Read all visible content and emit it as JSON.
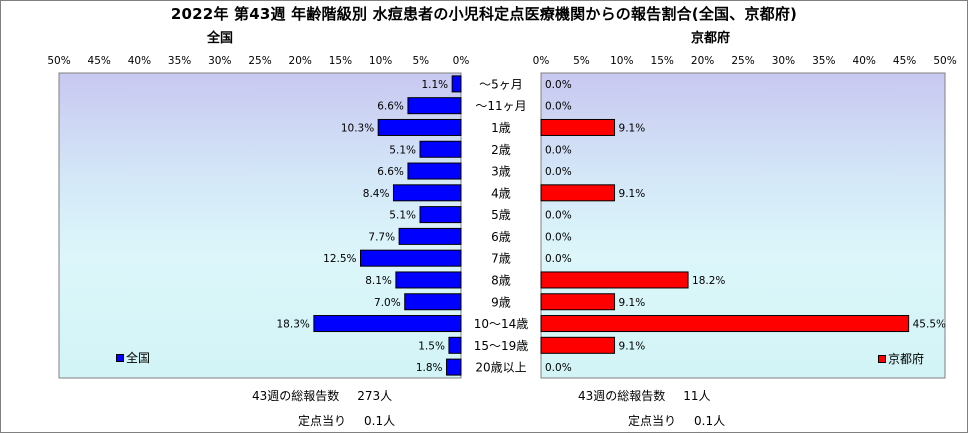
{
  "title": "2022年 第43週 年齢階級別 水痘患者の小児科定点医療機関からの報告割合(全国、京都府)",
  "chart_data": {
    "type": "bar",
    "orientation": "horizontal",
    "categories": [
      "～5ヶ月",
      "～11ヶ月",
      "1歳",
      "2歳",
      "3歳",
      "4歳",
      "5歳",
      "6歳",
      "7歳",
      "8歳",
      "9歳",
      "10～14歳",
      "15～19歳",
      "20歳以上"
    ],
    "tick_values": [
      0,
      5,
      10,
      15,
      20,
      25,
      30,
      35,
      40,
      45,
      50
    ],
    "tick_labels": [
      "0%",
      "5%",
      "10%",
      "15%",
      "20%",
      "25%",
      "30%",
      "35%",
      "40%",
      "45%",
      "50%"
    ],
    "xlim": [
      0,
      50
    ],
    "panels": [
      {
        "name": "全国",
        "title": "全国",
        "legend": "全国",
        "color": "#0000ff",
        "direction": "reversed",
        "values": [
          1.1,
          6.6,
          10.3,
          5.1,
          6.6,
          8.4,
          5.1,
          7.7,
          12.5,
          8.1,
          7.0,
          18.3,
          1.5,
          1.8
        ],
        "value_labels": [
          "1.1%",
          "6.6%",
          "10.3%",
          "5.1%",
          "6.6%",
          "8.4%",
          "5.1%",
          "7.7%",
          "12.5%",
          "8.1%",
          "7.0%",
          "18.3%",
          "1.5%",
          "1.8%"
        ],
        "legend_position": "bottom-left"
      },
      {
        "name": "京都府",
        "title": "京都府",
        "legend": "京都府",
        "color": "#ff0000",
        "direction": "normal",
        "values": [
          0.0,
          0.0,
          9.1,
          0.0,
          0.0,
          9.1,
          0.0,
          0.0,
          0.0,
          18.2,
          9.1,
          45.5,
          9.1,
          0.0
        ],
        "value_labels": [
          "0.0%",
          "0.0%",
          "9.1%",
          "0.0%",
          "0.0%",
          "9.1%",
          "0.0%",
          "0.0%",
          "0.0%",
          "18.2%",
          "9.1%",
          "45.5%",
          "9.1%",
          "0.0%"
        ],
        "legend_position": "bottom-right"
      }
    ]
  },
  "footer": {
    "national": {
      "total_label": "43週の総報告数",
      "total_value": "273人",
      "per_label": "定点当り",
      "per_value": "0.1人"
    },
    "kyoto": {
      "total_label": "43週の総報告数",
      "total_value": "11人",
      "per_label": "定点当り",
      "per_value": "0.1人"
    }
  }
}
